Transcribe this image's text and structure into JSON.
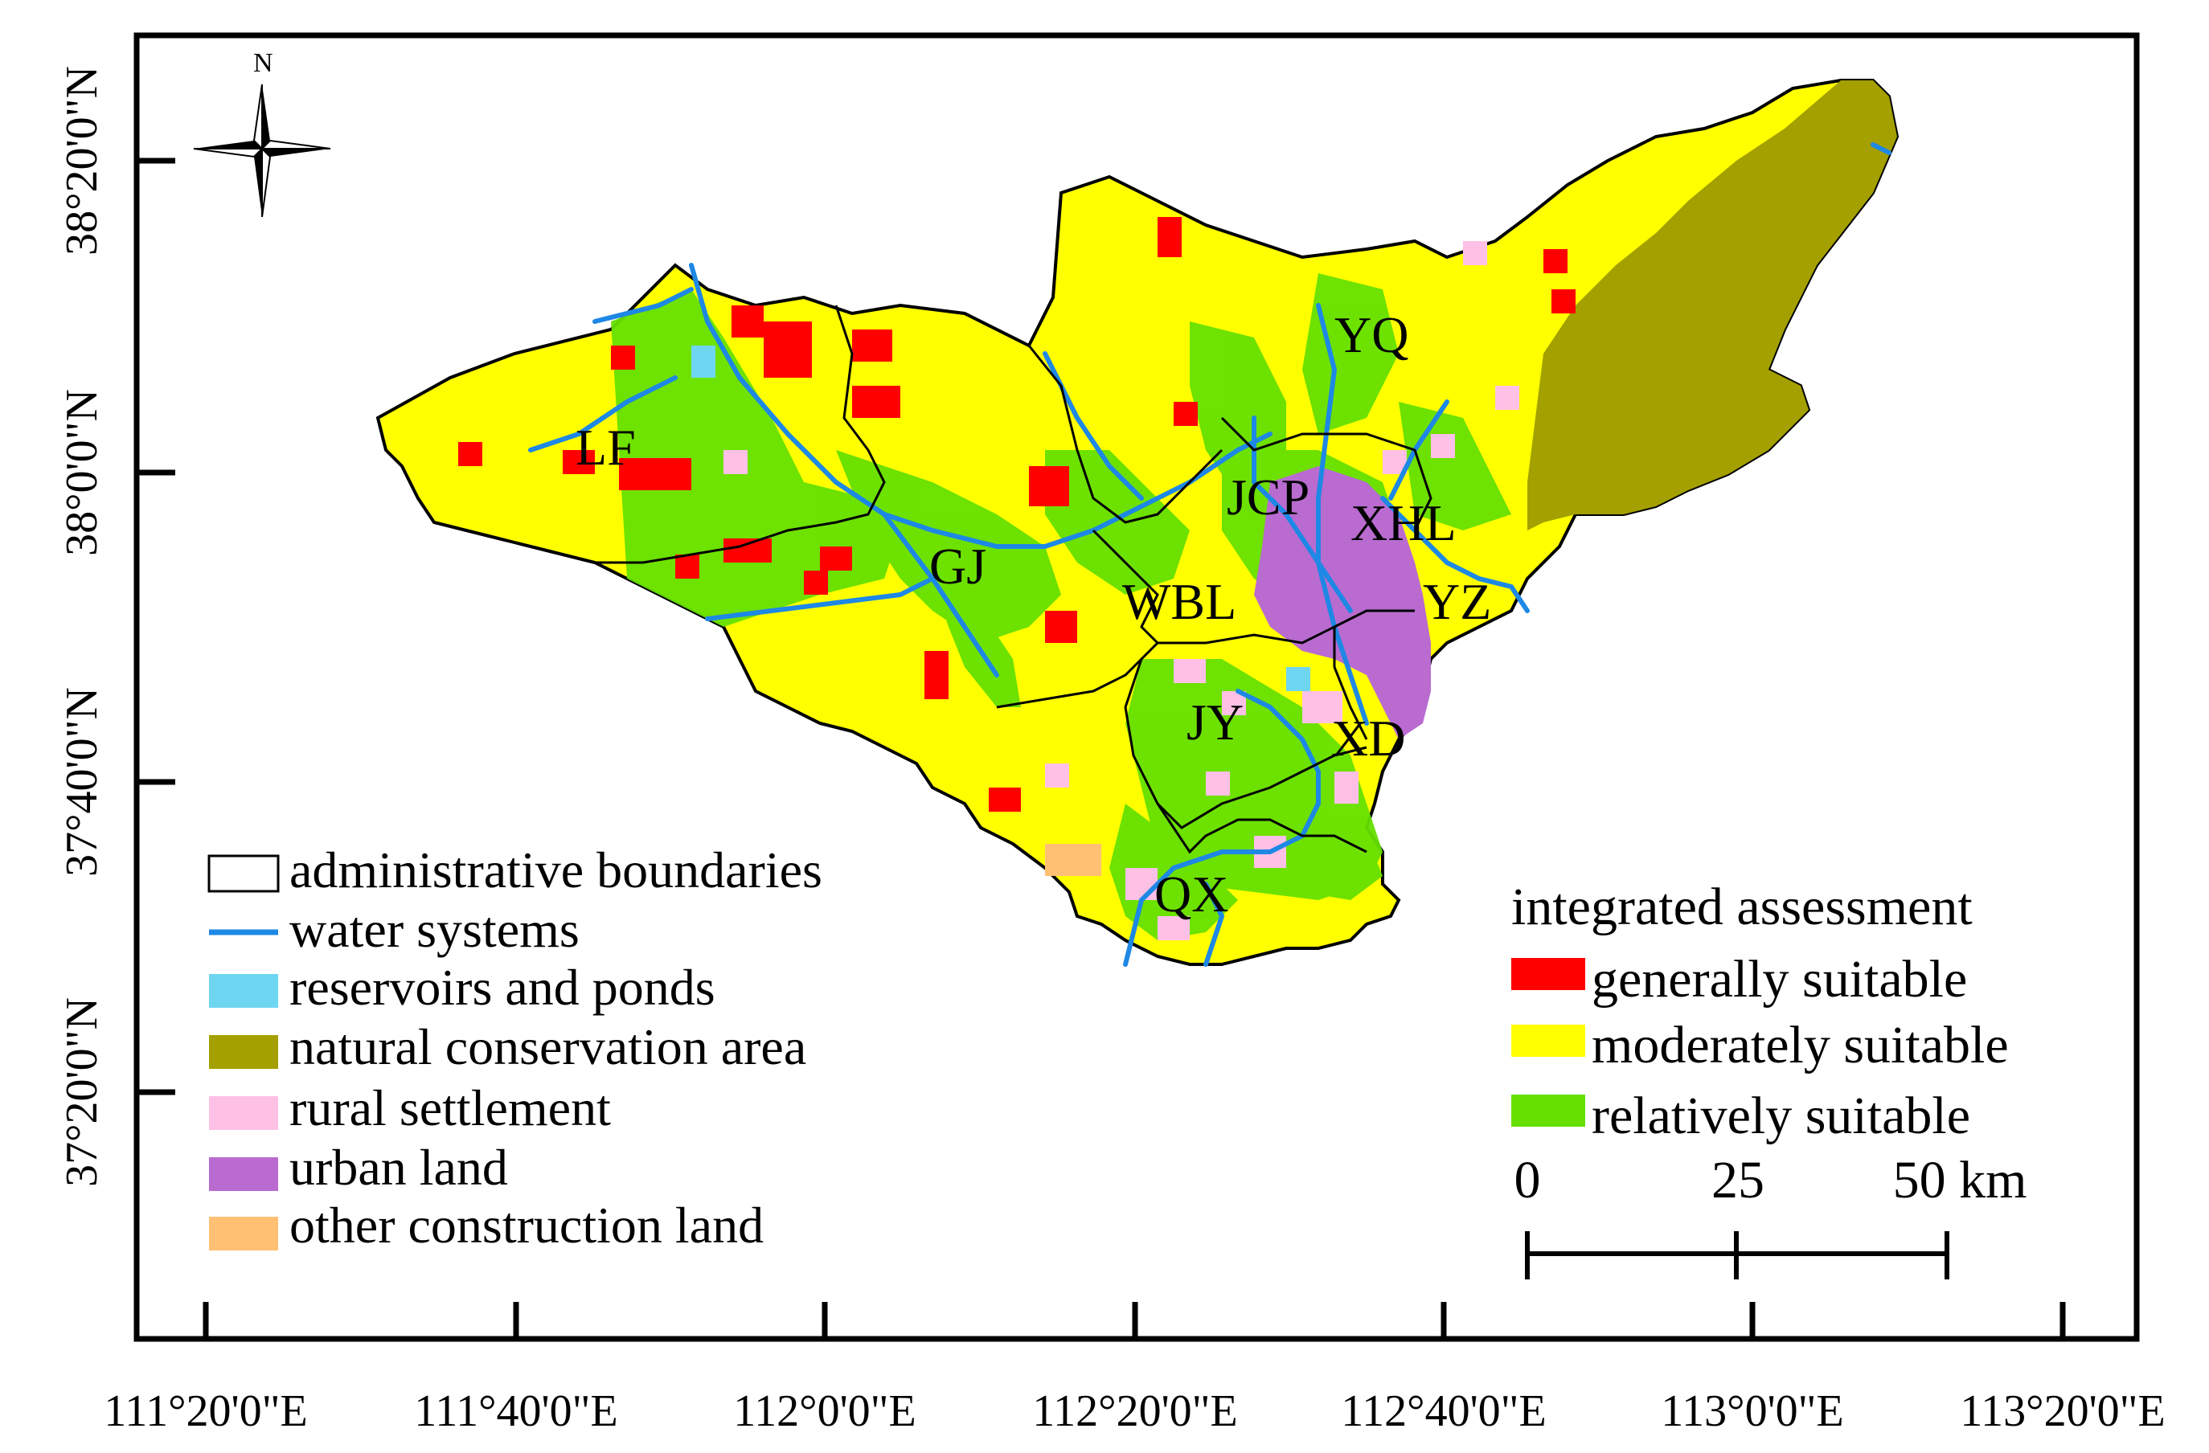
{
  "north_arrow": {
    "label": "N"
  },
  "axes": {
    "x_ticks": [
      "111°20'0\"E",
      "111°40'0\"E",
      "112°0'0\"E",
      "112°20'0\"E",
      "112°40'0\"E",
      "113°0'0\"E",
      "113°20'0\"E"
    ],
    "y_ticks": [
      "38°20'0\"N",
      "38°0'0\"N",
      "37°40'0\"N",
      "37°20'0\"N"
    ]
  },
  "regions": [
    "YQ",
    "LF",
    "JCP",
    "XHL",
    "GJ",
    "WBL",
    "YZ",
    "JY",
    "XD",
    "QX"
  ],
  "legend_left": {
    "items": [
      {
        "label": "administrative boundaries",
        "symbol": "box",
        "color": "#ffffff"
      },
      {
        "label": "water systems",
        "symbol": "line",
        "color": "#1e88e5"
      },
      {
        "label": "reservoirs and ponds",
        "symbol": "fill",
        "color": "#6fd6f2"
      },
      {
        "label": "natural conservation area",
        "symbol": "fill",
        "color": "#a3a000"
      },
      {
        "label": "rural settlement",
        "symbol": "fill",
        "color": "#ffc0e6"
      },
      {
        "label": "urban land",
        "symbol": "fill",
        "color": "#b96bd0"
      },
      {
        "label": "other construction land",
        "symbol": "fill",
        "color": "#ffc074"
      }
    ]
  },
  "legend_right": {
    "title": "integrated assessment",
    "items": [
      {
        "label": "generally suitable",
        "color": "#ff0000"
      },
      {
        "label": "moderately suitable",
        "color": "#ffff00"
      },
      {
        "label": "relatively suitable",
        "color": "#66e000"
      }
    ]
  },
  "scale_bar": {
    "labels": [
      "0",
      "25",
      "50 km"
    ]
  }
}
